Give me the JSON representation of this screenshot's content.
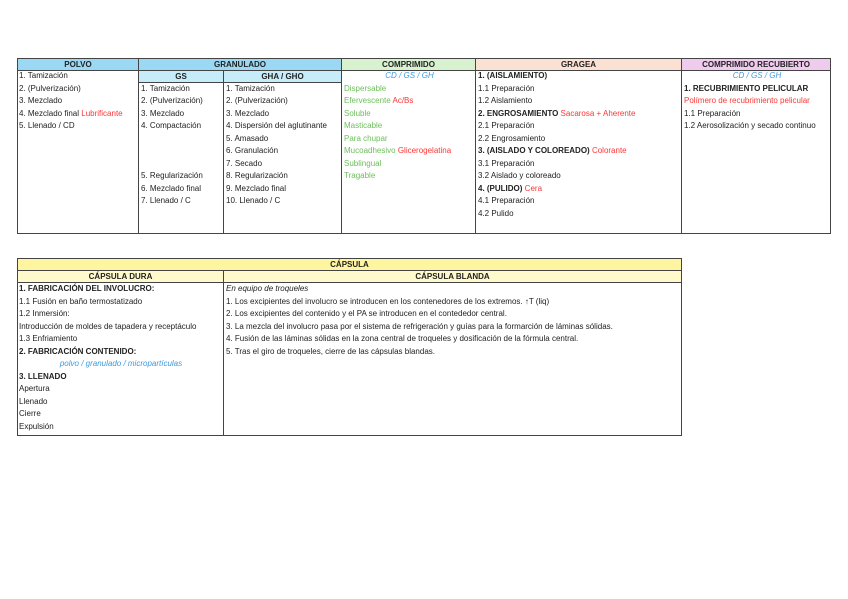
{
  "colors": {
    "polvo_header": "#9ad8f4",
    "gs_header": "#c6ecfa",
    "comprimido_header": "#d8f1cf",
    "gragea_header": "#fbe1d3",
    "recubierto_header": "#efcbee",
    "capsula_header": "#fff5a0",
    "capsula_sub": "#fffacc",
    "red": "#ff3535",
    "green": "#6cbf5a",
    "blue": "#3d9be0"
  },
  "top": {
    "headers": {
      "polvo": "POLVO",
      "granulado": "GRANULADO",
      "gs": "GS",
      "gha": "GHA / GHO",
      "comprimido": "COMPRIMIDO",
      "gragea": "GRAGEA",
      "recubierto": "COMPRIMIDO RECUBIERTO"
    },
    "polvo": [
      [
        {
          "t": "1. Tamización"
        }
      ],
      [
        {
          "t": "2. (Pulverización)"
        }
      ],
      [
        {
          "t": "3. Mezclado"
        }
      ],
      [
        {
          "t": "4. Mezclado final "
        },
        {
          "t": "Lubrificante",
          "s": "r"
        }
      ],
      [
        {
          "t": "5. Llenado / CD"
        }
      ]
    ],
    "gs": [
      [],
      [
        {
          "t": "1. Tamización"
        }
      ],
      [
        {
          "t": "2. (Pulverización)"
        }
      ],
      [
        {
          "t": "3. Mezclado"
        }
      ],
      [
        {
          "t": "4. Compactación"
        }
      ],
      [],
      [],
      [],
      [
        {
          "t": "5. Regularización"
        }
      ],
      [
        {
          "t": "6. Mezclado final"
        }
      ],
      [
        {
          "t": "7. Llenado / C"
        }
      ]
    ],
    "gha": [
      [],
      [
        {
          "t": "1. Tamización"
        }
      ],
      [
        {
          "t": "2. (Pulverización)"
        }
      ],
      [
        {
          "t": "3. Mezclado"
        }
      ],
      [
        {
          "t": "4. Dispersión del aglutinante"
        }
      ],
      [
        {
          "t": "5. Amasado"
        }
      ],
      [
        {
          "t": "6. Granulación"
        }
      ],
      [
        {
          "t": "7. Secado"
        }
      ],
      [
        {
          "t": "8. Regularización"
        }
      ],
      [
        {
          "t": "9. Mezclado final"
        }
      ],
      [
        {
          "t": "10. Llenado / C"
        }
      ]
    ],
    "comprimido": [
      [
        {
          "t": "CD / GS / GH",
          "s": "bl c"
        }
      ],
      [
        {
          "t": "Dispersable",
          "s": "g"
        }
      ],
      [
        {
          "t": "Efervescente ",
          "s": "g"
        },
        {
          "t": "Ac/Bs",
          "s": "r"
        }
      ],
      [
        {
          "t": "Soluble",
          "s": "g"
        }
      ],
      [
        {
          "t": "Masticable",
          "s": "g"
        }
      ],
      [
        {
          "t": "Para chupar",
          "s": "g"
        }
      ],
      [
        {
          "t": "Mucoadhesivo ",
          "s": "g"
        },
        {
          "t": "Glicerogelatina",
          "s": "r"
        }
      ],
      [
        {
          "t": "Sublingual",
          "s": "g"
        }
      ],
      [
        {
          "t": "Tragable",
          "s": "g"
        }
      ]
    ],
    "gragea": [
      [
        {
          "t": "1. (AISLAMIENTO)",
          "s": "b"
        }
      ],
      [
        {
          "t": "1.1 Preparación"
        }
      ],
      [
        {
          "t": "1.2 Aislamiento"
        }
      ],
      [
        {
          "t": "2. ENGROSAMIENTO ",
          "s": "b"
        },
        {
          "t": "Sacarosa + Aherente",
          "s": "r"
        }
      ],
      [
        {
          "t": "2.1 Preparación"
        }
      ],
      [
        {
          "t": "2.2 Engrosamiento"
        }
      ],
      [
        {
          "t": "3. (AISLADO Y COLOREADO) ",
          "s": "b"
        },
        {
          "t": "Colorante",
          "s": "r"
        }
      ],
      [
        {
          "t": "3.1 Preparación"
        }
      ],
      [
        {
          "t": "3.2 Aislado y coloreado"
        }
      ],
      [
        {
          "t": "4. (PULIDO) ",
          "s": "b"
        },
        {
          "t": "Cera",
          "s": "r"
        }
      ],
      [
        {
          "t": "4.1 Preparación"
        }
      ],
      [
        {
          "t": "4.2 Pulido"
        }
      ]
    ],
    "recubierto": [
      [
        {
          "t": "CD / GS / GH",
          "s": "bl c"
        }
      ],
      [
        {
          "t": "1. RECUBRIMIENTO PELICULAR",
          "s": "b"
        }
      ],
      [
        {
          "t": "Polímero de recubrimiento pelicular",
          "s": "r"
        }
      ],
      [
        {
          "t": "1.1 Preparación"
        }
      ],
      [
        {
          "t": "1.2 Aerosolización y secado continuo"
        }
      ]
    ]
  },
  "capsula": {
    "headers": {
      "capsula": "CÁPSULA",
      "dura": "CÁPSULA DURA",
      "blanda": "CÁPSULA BLANDA"
    },
    "dura": [
      [
        {
          "t": "1. FABRICACIÓN DEL INVOLUCRO:",
          "s": "b"
        }
      ],
      [
        {
          "t": "1.1 Fusión en baño termostatizado"
        }
      ],
      [
        {
          "t": "1.2 Inmersión:"
        }
      ],
      [
        {
          "t": "Introducción de moldes de tapadera y receptáculo"
        }
      ],
      [
        {
          "t": "1.3 Enfriamiento"
        }
      ],
      [
        {
          "t": "2. FABRICACIÓN CONTENIDO:",
          "s": "b"
        }
      ],
      [
        {
          "t": "polvo / granulado / micropartículas",
          "s": "bl c"
        }
      ],
      [
        {
          "t": "3. LLENADO",
          "s": "b"
        }
      ],
      [
        {
          "t": "Apertura"
        }
      ],
      [
        {
          "t": "Llenado"
        }
      ],
      [
        {
          "t": "Cierre"
        }
      ],
      [
        {
          "t": "Expulsión"
        }
      ]
    ],
    "blanda": [
      [
        {
          "t": "En equipo de troqueles",
          "s": "i"
        }
      ],
      [
        {
          "t": "1. Los excipientes del involucro se introducen en los contenedores de los extremos. ↑T (liq)"
        }
      ],
      [
        {
          "t": "2. Los excipientes del contenido y el PA se introducen en el contededor central."
        }
      ],
      [
        {
          "t": "3. La mezcla del involucro pasa por el sistema de refrigeración y guías para la formarción de láminas sólidas."
        }
      ],
      [
        {
          "t": "4. Fusión de las láminas sólidas en la zona central de troqueles y dosificación de la fórmula central."
        }
      ],
      [
        {
          "t": "5. Tras el giro de troqueles, cierre de las cápsulas blandas."
        }
      ]
    ]
  }
}
